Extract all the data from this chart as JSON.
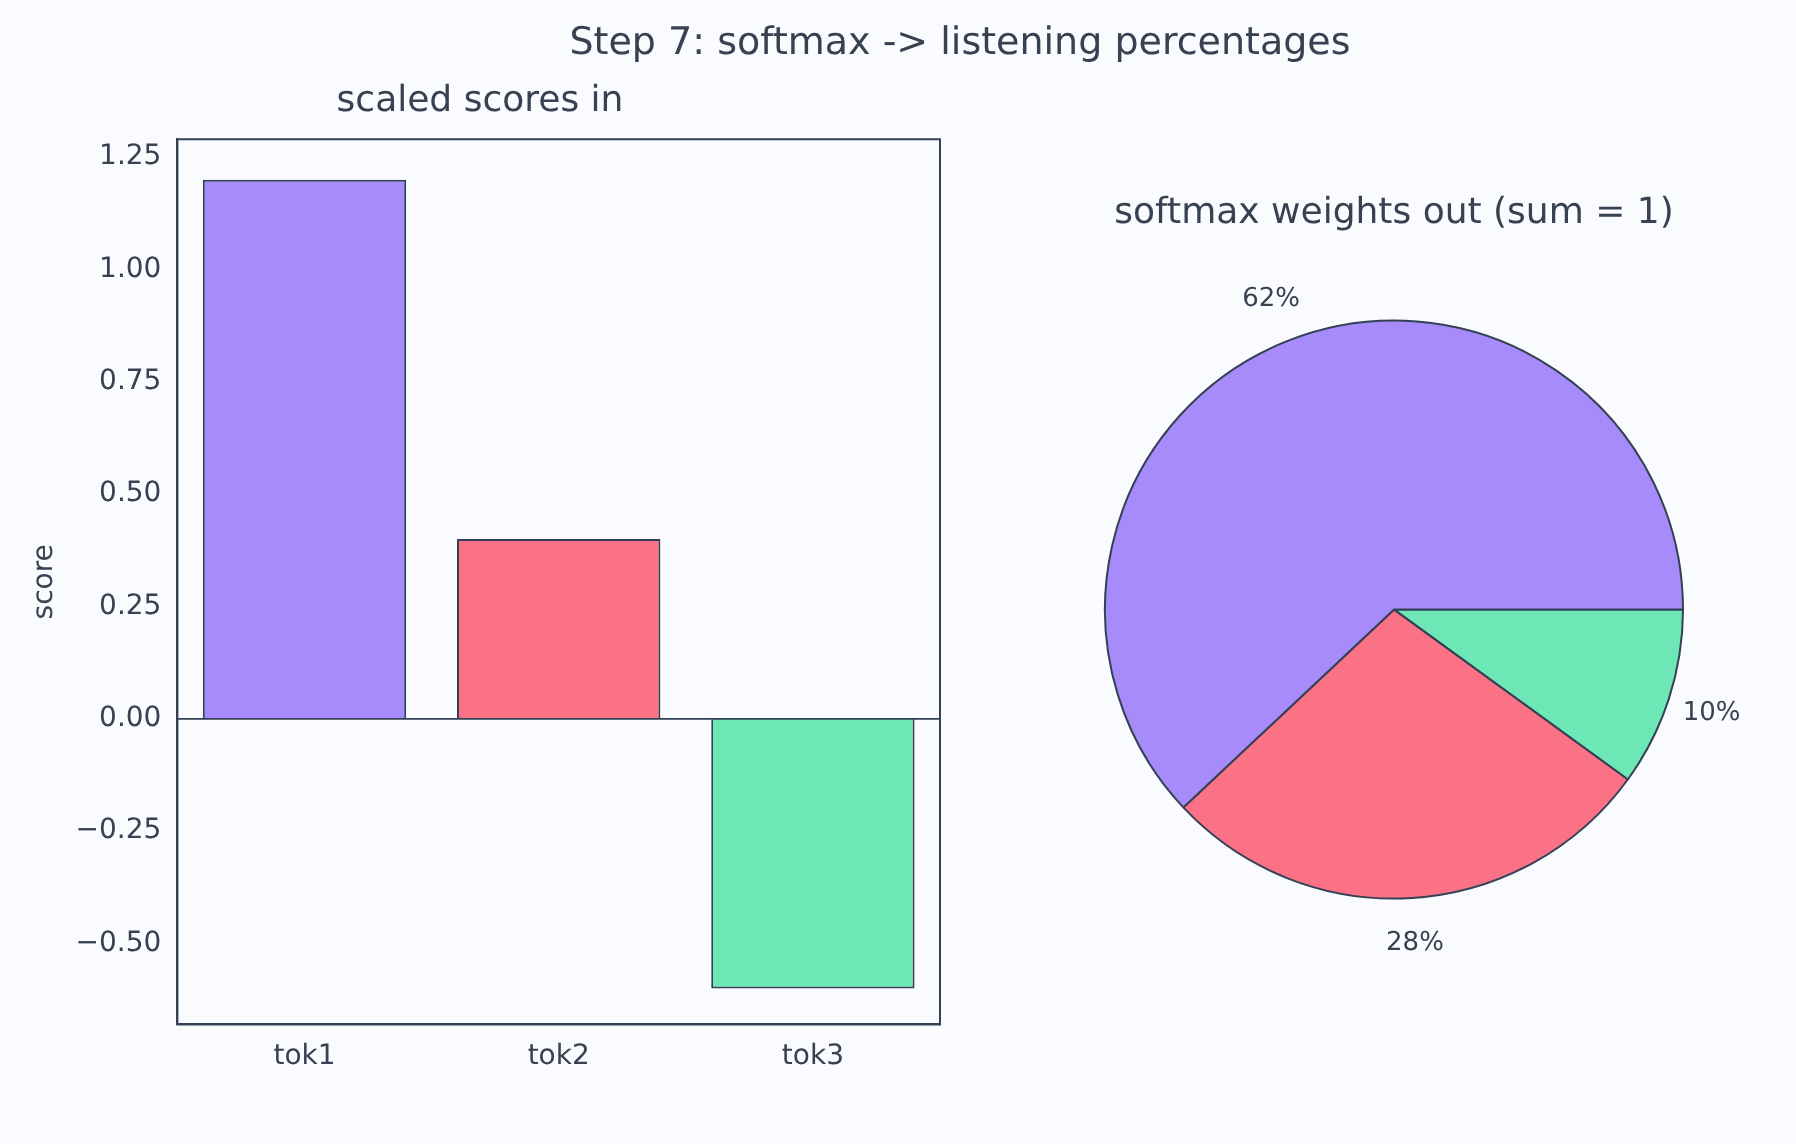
{
  "chart_data": [
    {
      "type": "bar",
      "title": "Step 7: softmax -> listening percentages",
      "subtitle": "scaled scores in",
      "ylabel": "score",
      "categories": [
        "tok1",
        "tok2",
        "tok3"
      ],
      "values": [
        1.2,
        0.4,
        -0.6
      ],
      "colors": [
        "#a78bfa",
        "#fb7185",
        "#6ee7b7"
      ],
      "ylim": [
        -0.68,
        1.29
      ],
      "yticks": [
        {
          "value": -0.5,
          "label": "−0.50"
        },
        {
          "value": -0.25,
          "label": "−0.25"
        },
        {
          "value": 0,
          "label": "0.00"
        },
        {
          "value": 0.25,
          "label": "0.25"
        },
        {
          "value": 0.5,
          "label": "0.50"
        },
        {
          "value": 0.75,
          "label": "0.75"
        },
        {
          "value": 1,
          "label": "1.00"
        },
        {
          "value": 1.25,
          "label": "1.25"
        }
      ],
      "grid": false,
      "legend": false,
      "ref_lines": [
        {
          "axis": "y",
          "value": 0,
          "color": "#334155"
        }
      ]
    },
    {
      "type": "pie",
      "title": "softmax weights out (sum = 1)",
      "categories": [
        null,
        null,
        null
      ],
      "values": [
        62,
        28,
        10
      ],
      "colors": [
        "#a78bfa",
        "#fb7185",
        "#6ee7b7"
      ],
      "value_labels": [
        "62%",
        "28%",
        "10%"
      ],
      "legend": false
    }
  ]
}
